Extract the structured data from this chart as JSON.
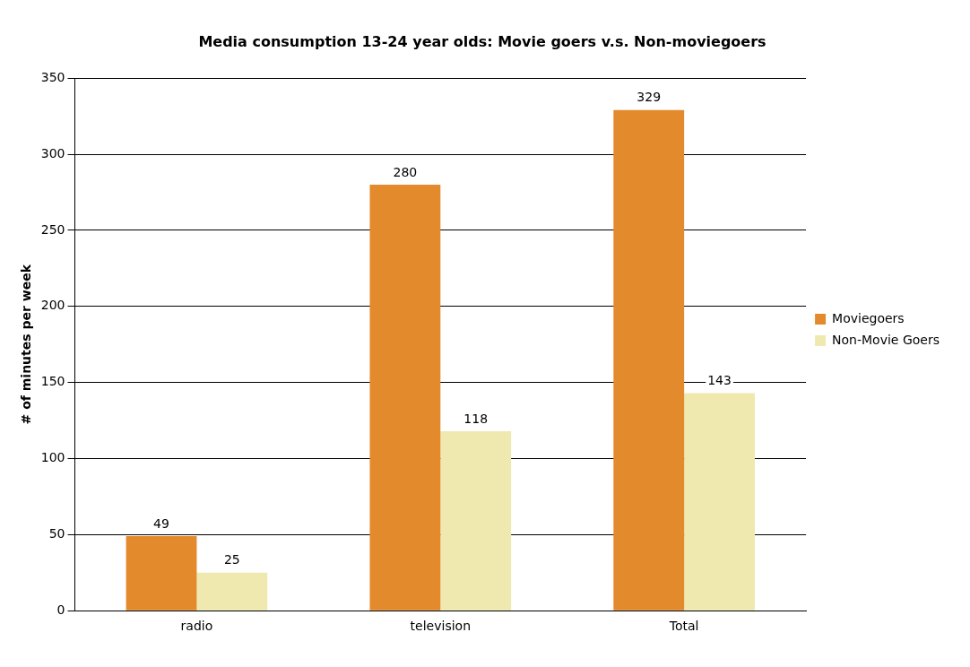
{
  "chart_data": {
    "type": "bar",
    "title": "Media consumption 13-24 year olds: Movie goers v.s. Non-moviegoers",
    "ylabel": "# of minutes per week",
    "categories": [
      "radio",
      "television",
      "Total"
    ],
    "series": [
      {
        "name": "Moviegoers",
        "color": "#e38a2c",
        "values": [
          49,
          280,
          329
        ]
      },
      {
        "name": "Non-Movie Goers",
        "color": "#efe9b0",
        "values": [
          25,
          118,
          143
        ]
      }
    ],
    "ylim": [
      0,
      350
    ],
    "yticks": [
      0,
      50,
      100,
      150,
      200,
      250,
      300,
      350
    ],
    "grid": "y",
    "legend": "right",
    "data_labels": true
  }
}
